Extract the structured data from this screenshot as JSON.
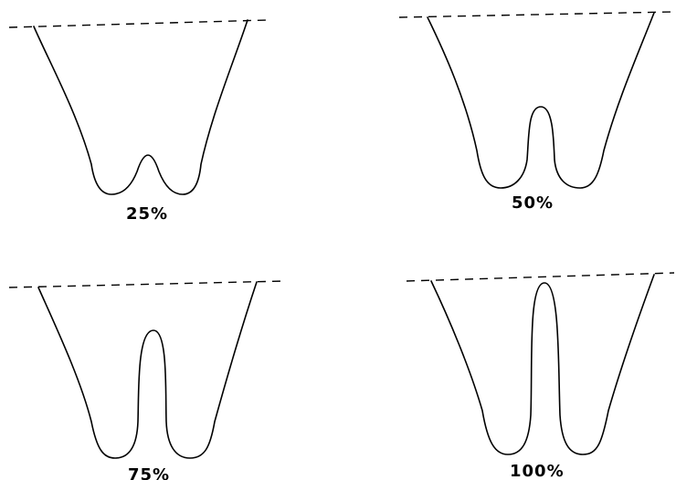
{
  "panels": [
    {
      "label": "25%"
    },
    {
      "label": "50%"
    },
    {
      "label": "75%"
    },
    {
      "label": "100%"
    }
  ]
}
